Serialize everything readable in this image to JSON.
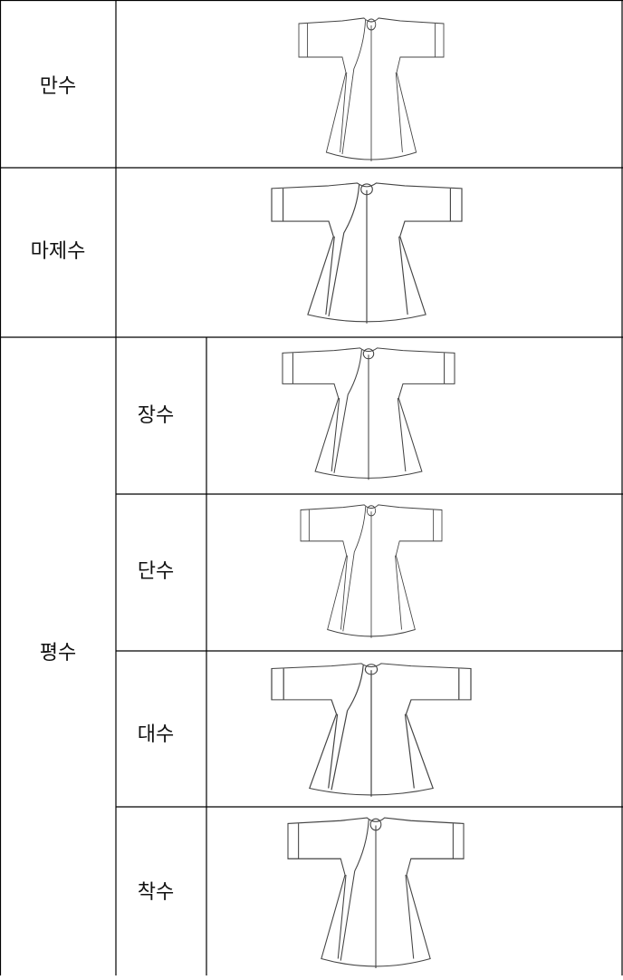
{
  "table": {
    "rows": [
      {
        "label": "만수"
      },
      {
        "label": "마제수"
      },
      {
        "label": "평수",
        "subrows": [
          {
            "label": "장수"
          },
          {
            "label": "단수"
          },
          {
            "label": "대수"
          },
          {
            "label": "착수"
          }
        ]
      }
    ]
  }
}
